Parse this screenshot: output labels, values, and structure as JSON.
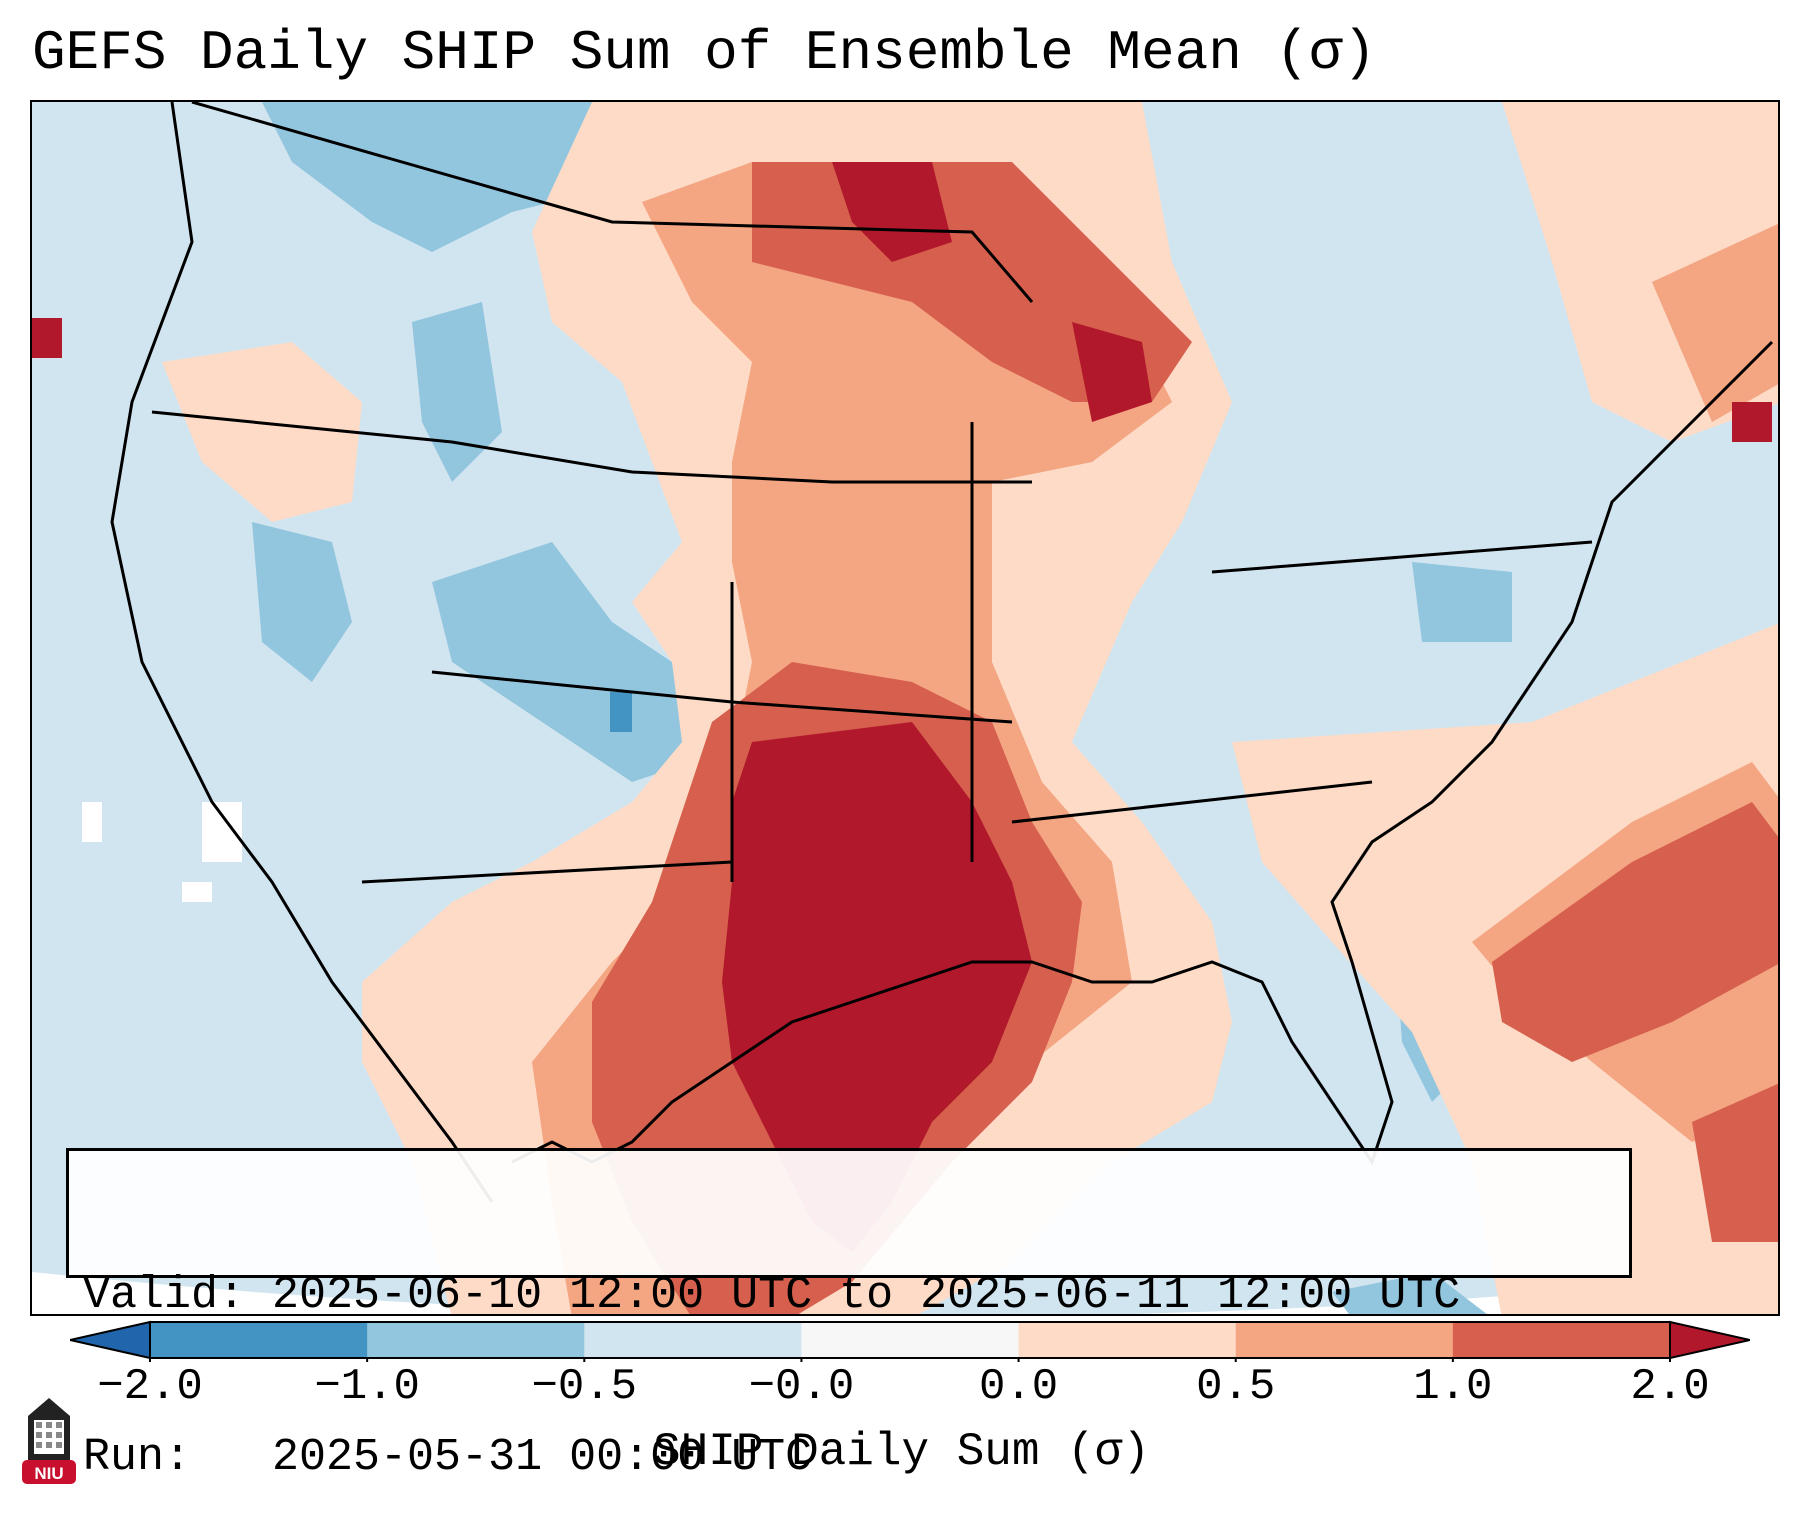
{
  "title": "GEFS Daily SHIP Sum of Ensemble Mean (σ)",
  "map": {
    "region": "Contiguous United States",
    "colors": {
      "ocean_background": "#d1e5f0",
      "coastline": "#000000"
    },
    "anomaly_classes": [
      {
        "range": "< -2.0",
        "color": "#2166ac"
      },
      {
        "range": "-2.0 to -1.0",
        "color": "#4393c3"
      },
      {
        "range": "-1.0 to -0.5",
        "color": "#92c5de"
      },
      {
        "range": "-0.5 to -0.0",
        "color": "#d1e5f0"
      },
      {
        "range": "-0.0 to 0.0",
        "color": "#f7f7f7"
      },
      {
        "range": "0.0 to 0.5",
        "color": "#fddbc7"
      },
      {
        "range": "0.5 to 1.0",
        "color": "#f4a582"
      },
      {
        "range": "1.0 to 2.0",
        "color": "#d6604d"
      },
      {
        "range": "> 2.0",
        "color": "#b2182b"
      }
    ]
  },
  "info": {
    "valid_line": "Valid: 2025-06-10 12:00 UTC to 2025-06-11 12:00 UTC",
    "run_line": "Run:   2025-05-31 00:00 UTC"
  },
  "colorbar": {
    "label": "SHIP Daily Sum (σ)",
    "tick_labels": [
      "−2.0",
      "−1.0",
      "−0.5",
      "−0.0",
      "0.0",
      "0.5",
      "1.0",
      "2.0"
    ],
    "colors": [
      "#2166ac",
      "#4393c3",
      "#92c5de",
      "#d1e5f0",
      "#f7f7f7",
      "#fddbc7",
      "#f4a582",
      "#d6604d",
      "#b2182b"
    ]
  },
  "logo": {
    "text": "NIU",
    "colors": {
      "badge": "#c8102e",
      "tower": "#222222"
    }
  }
}
